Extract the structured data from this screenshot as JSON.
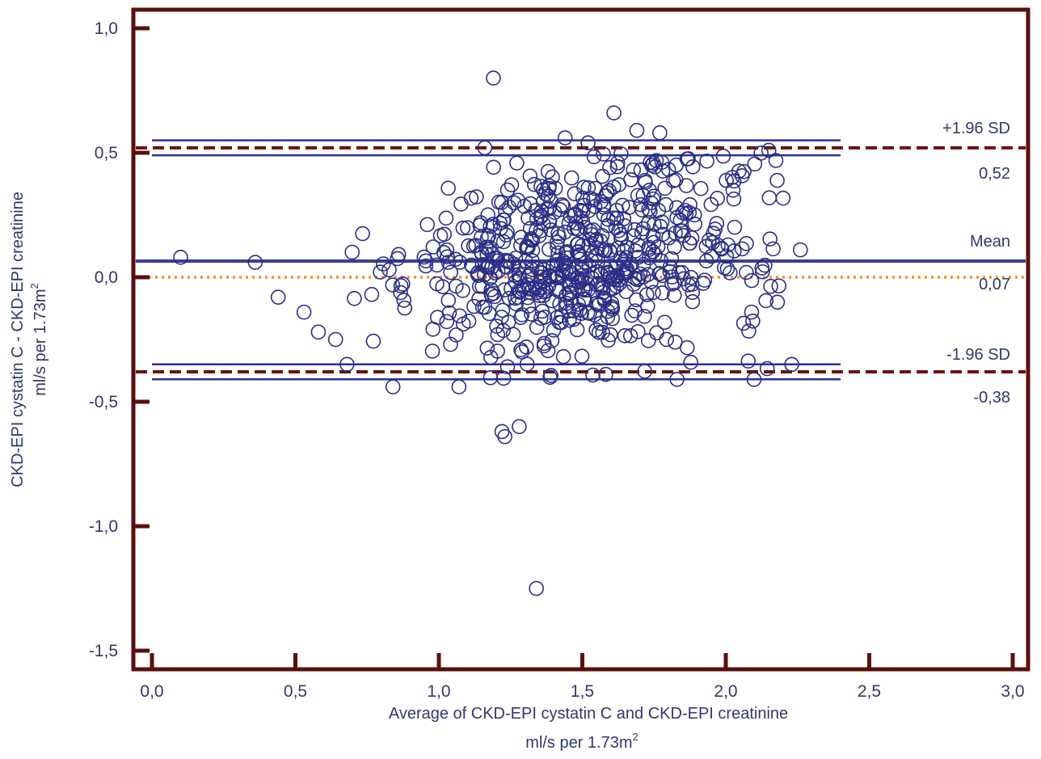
{
  "chart_data": {
    "type": "scatter",
    "title": "",
    "xlabel_line1": "Average of CKD-EPI cystatin C and CKD-EPI creatinine",
    "xlabel_line2": "ml/s per 1.73m",
    "xlabel_sup": "2",
    "ylabel_line1": "CKD-EPI cystatin C - CKD-EPI creatinine",
    "ylabel_line2": "ml/s per 1.73m",
    "ylabel_sup": "2",
    "xlim": [
      0,
      3.0
    ],
    "ylim": [
      -1.5,
      1.0
    ],
    "x_ticks": [
      0,
      0.5,
      1.0,
      1.5,
      2.0,
      2.5,
      3.0
    ],
    "x_tick_labels": [
      "0,0",
      "0,5",
      "1,0",
      "1,5",
      "2,0",
      "2,5",
      "3,0"
    ],
    "y_ticks": [
      -1.5,
      -1.0,
      -0.5,
      0,
      0.5,
      1.0
    ],
    "y_tick_labels": [
      "-1,5",
      "-1,0",
      "-0,5",
      "0,0",
      "0,5",
      "1,0"
    ],
    "grid": false,
    "zero_line": 0,
    "mean": {
      "value": 0.07,
      "label": "Mean",
      "value_label": "0,07",
      "ci": [
        0.06,
        0.07
      ]
    },
    "upper_loa": {
      "value": 0.52,
      "label": "+1.96 SD",
      "value_label": "0,52",
      "ci": [
        0.49,
        0.55
      ]
    },
    "lower_loa": {
      "value": -0.38,
      "label": "-1.96 SD",
      "value_label": "-0,38",
      "ci": [
        -0.41,
        -0.35
      ]
    },
    "ci_x_range": [
      0,
      2.4
    ],
    "annotated_points": [
      {
        "x": 1.19,
        "y": 0.8
      },
      {
        "x": 1.61,
        "y": 0.66
      },
      {
        "x": 1.34,
        "y": -1.25
      },
      {
        "x": 0.1,
        "y": 0.08
      },
      {
        "x": 0.36,
        "y": 0.06
      },
      {
        "x": 2.26,
        "y": 0.11
      },
      {
        "x": 2.23,
        "y": -0.35
      },
      {
        "x": 1.23,
        "y": -0.64
      },
      {
        "x": 1.28,
        "y": -0.6
      },
      {
        "x": 1.22,
        "y": -0.62
      },
      {
        "x": 1.69,
        "y": 0.59
      },
      {
        "x": 1.77,
        "y": 0.58
      },
      {
        "x": 1.16,
        "y": 0.52
      },
      {
        "x": 2.15,
        "y": 0.51
      },
      {
        "x": 1.44,
        "y": 0.56
      },
      {
        "x": 1.52,
        "y": 0.54
      },
      {
        "x": 0.44,
        "y": -0.08
      },
      {
        "x": 0.53,
        "y": -0.14
      },
      {
        "x": 0.58,
        "y": -0.22
      },
      {
        "x": 0.64,
        "y": -0.25
      },
      {
        "x": 0.68,
        "y": -0.35
      },
      {
        "x": 0.84,
        "y": -0.44
      },
      {
        "x": 1.07,
        "y": -0.44
      },
      {
        "x": 1.83,
        "y": -0.41
      },
      {
        "x": 2.18,
        "y": -0.1
      },
      {
        "x": 2.09,
        "y": -0.14
      }
    ],
    "scatter_seed": 7,
    "scatter_count": 640
  },
  "colors": {
    "frame": "#5a0f0f",
    "points": "#2a2f86",
    "ci_lines": "#2a2f9e",
    "mean_line": "#3a3f96",
    "loa_dash": "#6e1010",
    "zero_dot": "#f0902c",
    "text": "#2e3a6e"
  }
}
